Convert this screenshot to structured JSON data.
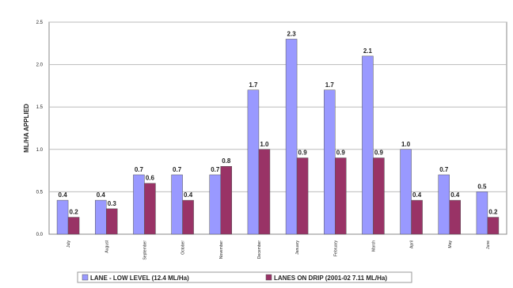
{
  "chart_data": {
    "type": "bar",
    "title": "",
    "xlabel": "",
    "ylabel": "ML/HA APPLIED",
    "ylim": [
      0,
      2.5
    ],
    "yticks": [
      "0.0",
      "0.5",
      "1.0",
      "1.5",
      "2.0",
      "2.5"
    ],
    "grid": "horizontal",
    "legend_position": "bottom",
    "categories": [
      "July",
      "August",
      "September",
      "October",
      "November",
      "December",
      "January",
      "February",
      "March",
      "April",
      "May",
      "June"
    ],
    "series": [
      {
        "name": "LANE - LOW LEVEL (12.4 ML/Ha)",
        "color": "#9999ff",
        "values": [
          0.4,
          0.4,
          0.7,
          0.7,
          0.7,
          1.7,
          2.3,
          1.7,
          2.1,
          1.0,
          0.7,
          0.5
        ],
        "labels": [
          "0.4",
          "0.4",
          "0.7",
          "0.7",
          "0.7",
          "1.7",
          "2.3",
          "1.7",
          "2.1",
          "1.0",
          "0.7",
          "0.5"
        ]
      },
      {
        "name": "LANES ON DRIP (2001-02 7.11 ML/Ha)",
        "color": "#993366",
        "values": [
          0.2,
          0.3,
          0.6,
          0.4,
          0.8,
          1.0,
          0.9,
          0.9,
          0.9,
          0.4,
          0.4,
          0.2
        ],
        "labels": [
          "0.2",
          "0.3",
          "0.6",
          "0.4",
          "0.8",
          "1.0",
          "0.9",
          "0.9",
          "0.9",
          "0.4",
          "0.4",
          "0.2"
        ]
      }
    ]
  }
}
